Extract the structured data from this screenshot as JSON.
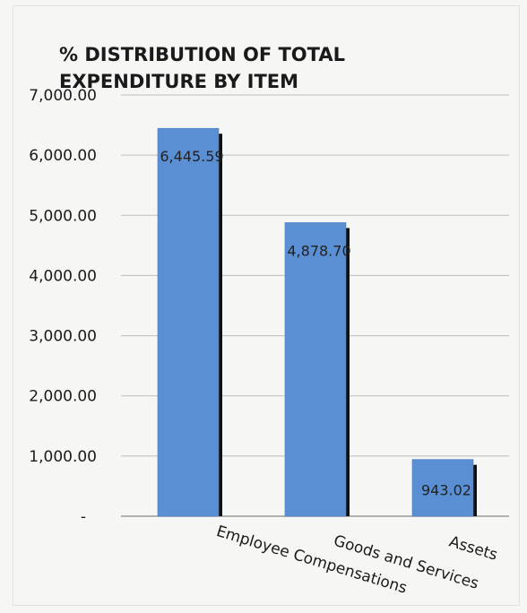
{
  "chart_data": {
    "type": "bar",
    "title_lines": [
      "% DISTRIBUTION OF TOTAL",
      "EXPENDITURE BY ITEM"
    ],
    "categories": [
      "Employee Compensations",
      "Goods and Services",
      "Assets"
    ],
    "values": [
      6445.59,
      4878.7,
      943.02
    ],
    "data_labels": [
      "6,445.59",
      "4,878.70",
      "943.02"
    ],
    "y_ticks": [
      {
        "value": 0,
        "label": "-"
      },
      {
        "value": 1000,
        "label": "1,000.00"
      },
      {
        "value": 2000,
        "label": "2,000.00"
      },
      {
        "value": 3000,
        "label": "3,000.00"
      },
      {
        "value": 4000,
        "label": "4,000.00"
      },
      {
        "value": 5000,
        "label": "5,000.00"
      },
      {
        "value": 6000,
        "label": "6,000.00"
      },
      {
        "value": 7000,
        "label": "7,000.00"
      }
    ],
    "ylim": [
      0,
      7000
    ],
    "grid": true,
    "bar_color": "#5b8fd4",
    "bar_shadow_color": "#111111",
    "grid_color": "#bdbdbd"
  }
}
